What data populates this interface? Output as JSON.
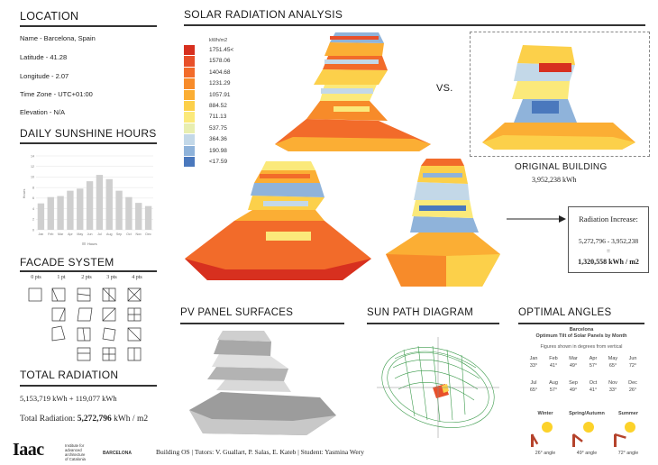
{
  "location": {
    "heading": "LOCATION",
    "name": "Name - Barcelona, Spain",
    "latitude": "Latitude - 41.28",
    "longitude": "Longitude - 2.07",
    "timezone": "Time Zone - UTC+01:00",
    "elevation": "Elevation - N/A"
  },
  "sunshine": {
    "heading": "DAILY SUNSHINE HOURS",
    "legend": "Hours",
    "chart_data": {
      "type": "bar",
      "categories": [
        "Jan",
        "Feb",
        "Mar",
        "Apr",
        "May",
        "Jun",
        "Jul",
        "Aug",
        "Sep",
        "Oct",
        "Nov",
        "Dec"
      ],
      "values": [
        5,
        6.2,
        6.4,
        7.4,
        7.8,
        9.2,
        10.4,
        9.6,
        7.4,
        6.2,
        5.1,
        4.5
      ],
      "ylim": [
        0,
        14
      ],
      "yticks": [
        "0",
        "2",
        "4",
        "6",
        "8",
        "10",
        "12",
        "14"
      ],
      "ylabel": "Hours",
      "grid": true,
      "legend_position": "bottom",
      "bar_color": "#cfcfcf"
    }
  },
  "facade": {
    "heading": "FACADE SYSTEM",
    "columns": [
      "0 pts",
      "1 pt",
      "2 pts",
      "3 pts",
      "4 pts"
    ]
  },
  "total": {
    "heading": "TOTAL RADIATION",
    "sum": "5,153,719 kWh + 119,077 kWh",
    "label": "Total Radiation:",
    "value": "5,272,796",
    "unit": "kWh / m2"
  },
  "solar": {
    "heading": "SOLAR RADIATION ANALYSIS",
    "vs": "VS.",
    "legend_unit": "kWh/m2",
    "legend": [
      {
        "label": "1751.45<",
        "color": "#d7301f"
      },
      {
        "label": "1578.06",
        "color": "#e8502a"
      },
      {
        "label": "1404.68",
        "color": "#f26b2a"
      },
      {
        "label": "1231.29",
        "color": "#f78b2a"
      },
      {
        "label": "1057.91",
        "color": "#fbae34"
      },
      {
        "label": "884.52",
        "color": "#fcd04a"
      },
      {
        "label": "711.13",
        "color": "#fbe97a"
      },
      {
        "label": "537.75",
        "color": "#e8eeb0"
      },
      {
        "label": "364.36",
        "color": "#c3d8e8"
      },
      {
        "label": "190.98",
        "color": "#8fb3da"
      },
      {
        "label": "<17.59",
        "color": "#4a78bd"
      }
    ],
    "original_label": "ORIGINAL BUILDING",
    "original_value": "3,952,238 kWh",
    "increase_title": "Radiation Increase:",
    "increase_formula": "5,272,796 - 3,952,238",
    "increase_eq": "=",
    "increase_value": "1,320,558 kWh / m2"
  },
  "pv": {
    "heading": "PV PANEL SURFACES"
  },
  "sunpath": {
    "heading": "SUN PATH DIAGRAM"
  },
  "angles": {
    "heading": "OPTIMAL ANGLES",
    "title1": "Barcelona",
    "title2": "Optimum Tilt of Solar Panels by Month",
    "note": "Figures shown in degrees from vertical",
    "months": [
      {
        "m": "Jan",
        "v": "33°"
      },
      {
        "m": "Feb",
        "v": "41°"
      },
      {
        "m": "Mar",
        "v": "49°"
      },
      {
        "m": "Apr",
        "v": "57°"
      },
      {
        "m": "May",
        "v": "65°"
      },
      {
        "m": "Jun",
        "v": "72°"
      },
      {
        "m": "Jul",
        "v": "65°"
      },
      {
        "m": "Aug",
        "v": "57°"
      },
      {
        "m": "Sep",
        "v": "49°"
      },
      {
        "m": "Oct",
        "v": "41°"
      },
      {
        "m": "Nov",
        "v": "33°"
      },
      {
        "m": "Dec",
        "v": "26°"
      }
    ],
    "seasons": [
      {
        "name": "Winter",
        "angle": "26° angle"
      },
      {
        "name": "Spring/Autumn",
        "angle": "49° angle"
      },
      {
        "name": "Summer",
        "angle": "72° angle"
      }
    ]
  },
  "footer": {
    "logo": "Iaac",
    "inst1": "Institute for",
    "inst2": "advanced",
    "inst3": "architecture",
    "inst4": "of Catalonia",
    "city": "BARCELONA",
    "credits": "Building OS | Tutors: V. Guallart, P. Salas, E. Kateb | Student: Yasmina Wery"
  }
}
